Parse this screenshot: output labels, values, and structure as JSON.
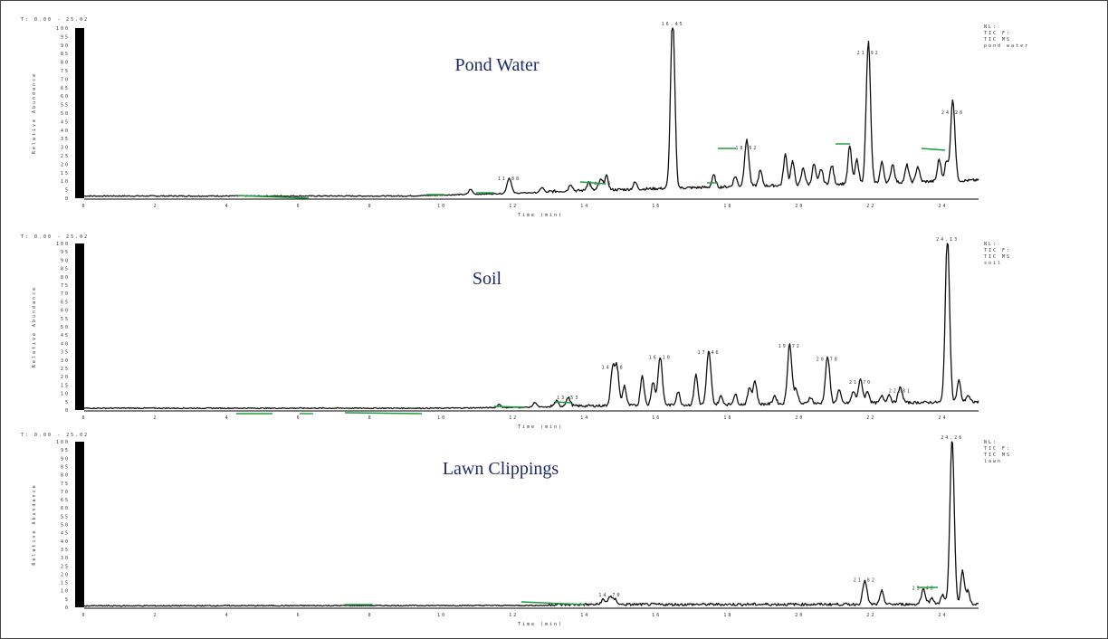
{
  "chart_data": [
    {
      "type": "line",
      "title": "Pond Water",
      "xlabel": "Time (min)",
      "ylabel": "Relative Abundance",
      "xlim": [
        0,
        25
      ],
      "ylim": [
        0,
        100
      ],
      "header": "T: 0.00 - 25.02",
      "info": [
        "NL:",
        "TIC F:",
        "TIC MS",
        "pond water"
      ],
      "peaks": [
        {
          "x": 11.88,
          "y": 9,
          "label": "11.88"
        },
        {
          "x": 16.45,
          "y": 100,
          "label": "16.45"
        },
        {
          "x": 18.52,
          "y": 27,
          "label": "18.52"
        },
        {
          "x": 21.92,
          "y": 83,
          "label": "21.92"
        },
        {
          "x": 24.28,
          "y": 48,
          "label": "24.28"
        },
        {
          "x": 14.44,
          "y": 6,
          "label": "14.44"
        }
      ],
      "x_ticks": [
        0,
        2,
        4,
        6,
        8,
        10,
        12,
        14,
        16,
        18,
        20,
        22,
        24
      ],
      "y_ticks": [
        0,
        5,
        10,
        15,
        20,
        25,
        30,
        35,
        40,
        45,
        50,
        55,
        60,
        65,
        70,
        75,
        80,
        85,
        90,
        95,
        100
      ]
    },
    {
      "type": "line",
      "title": "Soil",
      "xlabel": "Time (min)",
      "ylabel": "Relative Abundance",
      "xlim": [
        0,
        25
      ],
      "ylim": [
        0,
        100
      ],
      "header": "T: 0.00 - 25.02",
      "info": [
        "NL:",
        "TIC F:",
        "TIC MS",
        "soil"
      ],
      "peaks": [
        {
          "x": 24.13,
          "y": 100,
          "label": "24.13"
        },
        {
          "x": 14.78,
          "y": 23,
          "label": "14.78"
        },
        {
          "x": 16.1,
          "y": 29,
          "label": "16.10"
        },
        {
          "x": 17.46,
          "y": 32,
          "label": "17.46"
        },
        {
          "x": 19.72,
          "y": 36,
          "label": "19.72"
        },
        {
          "x": 20.78,
          "y": 28,
          "label": "20.78"
        },
        {
          "x": 21.7,
          "y": 14,
          "label": "21.70"
        },
        {
          "x": 22.81,
          "y": 9,
          "label": "22.81"
        },
        {
          "x": 13.53,
          "y": 5,
          "label": "13.53"
        }
      ],
      "x_ticks": [
        0,
        2,
        4,
        6,
        8,
        10,
        12,
        14,
        16,
        18,
        20,
        22,
        24
      ],
      "y_ticks": [
        0,
        5,
        10,
        15,
        20,
        25,
        30,
        35,
        40,
        45,
        50,
        55,
        60,
        65,
        70,
        75,
        80,
        85,
        90,
        95,
        100
      ]
    },
    {
      "type": "line",
      "title": "Lawn Clippings",
      "xlabel": "Time (min)",
      "ylabel": "Relative Abundance",
      "xlim": [
        0,
        25
      ],
      "ylim": [
        0,
        100
      ],
      "header": "T: 0.00 - 25.02",
      "info": [
        "NL:",
        "TIC F:",
        "TIC MS",
        "lawn"
      ],
      "peaks": [
        {
          "x": 24.26,
          "y": 100,
          "label": "24.26"
        },
        {
          "x": 21.82,
          "y": 14,
          "label": "21.82"
        },
        {
          "x": 14.7,
          "y": 5,
          "label": "14.70"
        },
        {
          "x": 23.46,
          "y": 9,
          "label": "23.46"
        }
      ],
      "x_ticks": [
        0,
        2,
        4,
        6,
        8,
        10,
        12,
        14,
        16,
        18,
        20,
        22,
        24
      ],
      "y_ticks": [
        0,
        5,
        10,
        15,
        20,
        25,
        30,
        35,
        40,
        45,
        50,
        55,
        60,
        65,
        70,
        75,
        80,
        85,
        90,
        95,
        100
      ]
    }
  ]
}
